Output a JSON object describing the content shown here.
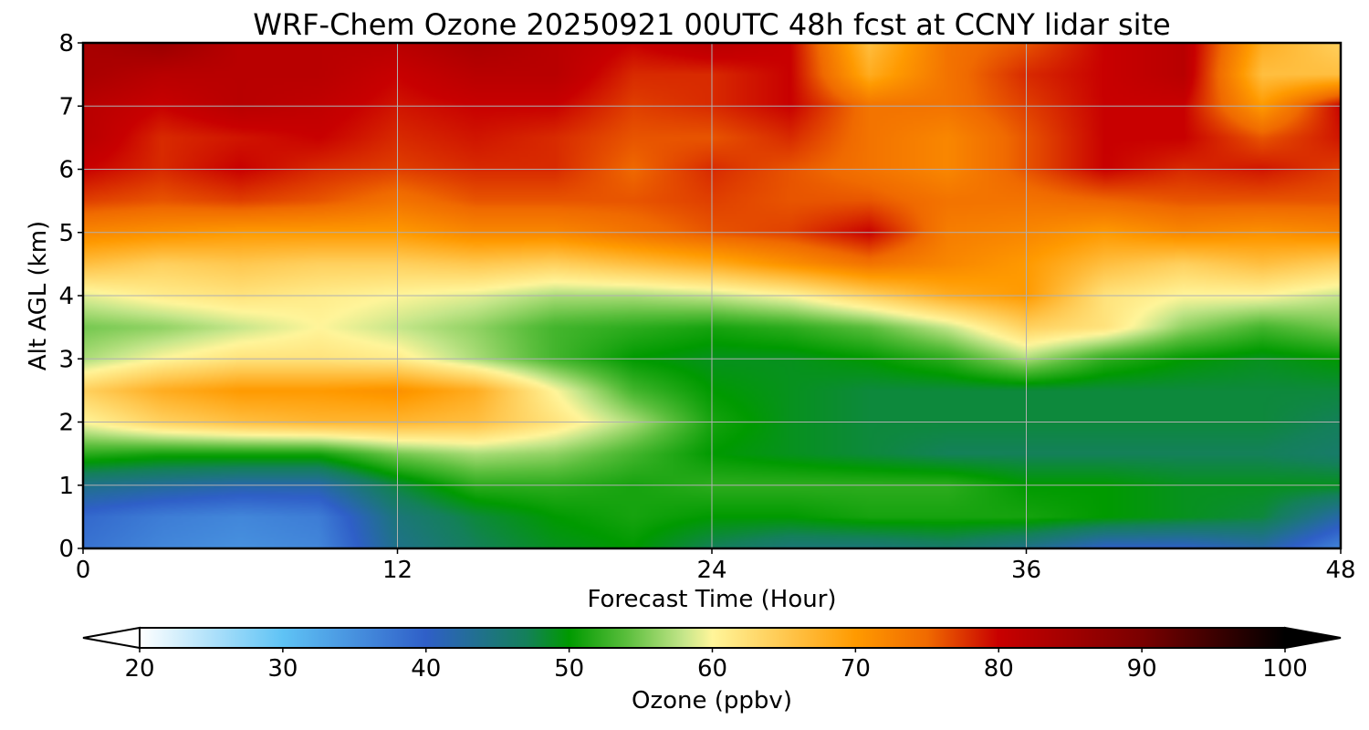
{
  "chart_data": {
    "type": "heatmap",
    "title": "WRF-Chem Ozone  20250921 00UTC 48h fcst at CCNY lidar site",
    "xlabel": "Forecast Time (Hour)",
    "ylabel": "Alt AGL (km)",
    "xlim": [
      0,
      48
    ],
    "ylim": [
      0,
      8
    ],
    "xticks": [
      0,
      12,
      24,
      36,
      48
    ],
    "yticks": [
      0,
      1,
      2,
      3,
      4,
      5,
      6,
      7,
      8
    ],
    "grid": true,
    "colorbar": {
      "label": "Ozone  (ppbv)",
      "min": 20,
      "max": 100,
      "ticks": [
        20,
        30,
        40,
        50,
        60,
        70,
        80,
        90,
        100
      ],
      "extend": "both",
      "stops": [
        {
          "v": 20,
          "color": "#ffffff"
        },
        {
          "v": 30,
          "color": "#5fc3f5"
        },
        {
          "v": 40,
          "color": "#2f5fc8"
        },
        {
          "v": 47,
          "color": "#14805a"
        },
        {
          "v": 50,
          "color": "#009a00"
        },
        {
          "v": 54,
          "color": "#5abe3c"
        },
        {
          "v": 58,
          "color": "#c5e68a"
        },
        {
          "v": 60,
          "color": "#fff59a"
        },
        {
          "v": 65,
          "color": "#ffc850"
        },
        {
          "v": 70,
          "color": "#ff9a00"
        },
        {
          "v": 75,
          "color": "#f06a00"
        },
        {
          "v": 80,
          "color": "#c80000"
        },
        {
          "v": 90,
          "color": "#7a0000"
        },
        {
          "v": 100,
          "color": "#000000"
        }
      ]
    },
    "x": [
      0,
      3,
      6,
      9,
      12,
      15,
      18,
      21,
      24,
      27,
      30,
      33,
      36,
      39,
      42,
      45,
      48
    ],
    "y": [
      0,
      0.5,
      1,
      1.5,
      2,
      2.5,
      3,
      3.5,
      4,
      4.5,
      5,
      5.5,
      6,
      6.5,
      7,
      7.5,
      8
    ],
    "z": [
      [
        38,
        36,
        35,
        36,
        44,
        47,
        49,
        50,
        47,
        45,
        45,
        46,
        44,
        40,
        40,
        42,
        36
      ],
      [
        39,
        37,
        36,
        37,
        45,
        48,
        50,
        51,
        50,
        50,
        51,
        51,
        51,
        50,
        49,
        48,
        42
      ],
      [
        44,
        43,
        42,
        42,
        48,
        52,
        52,
        51,
        52,
        52,
        52,
        52,
        50,
        50,
        49,
        49,
        49
      ],
      [
        52,
        51,
        51,
        51,
        55,
        57,
        56,
        53,
        50,
        49,
        48,
        47,
        47,
        47,
        47,
        47,
        46
      ],
      [
        60,
        64,
        66,
        67,
        67,
        66,
        62,
        57,
        51,
        49,
        48,
        48,
        48,
        48,
        48,
        48,
        47
      ],
      [
        64,
        68,
        70,
        70,
        71,
        68,
        60,
        53,
        50,
        49,
        48,
        48,
        48,
        48,
        48,
        48,
        48
      ],
      [
        57,
        60,
        62,
        62,
        61,
        57,
        53,
        50,
        49,
        49,
        50,
        52,
        57,
        52,
        50,
        49,
        50
      ],
      [
        55,
        56,
        58,
        60,
        58,
        56,
        53,
        52,
        51,
        52,
        54,
        58,
        64,
        62,
        56,
        53,
        55
      ],
      [
        59,
        61,
        62,
        61,
        60,
        59,
        57,
        57,
        58,
        60,
        64,
        68,
        70,
        62,
        60,
        60,
        58
      ],
      [
        66,
        64,
        65,
        64,
        64,
        65,
        64,
        66,
        68,
        71,
        74,
        72,
        70,
        66,
        64,
        66,
        64
      ],
      [
        72,
        71,
        70,
        70,
        70,
        72,
        72,
        74,
        76,
        77,
        80,
        73,
        72,
        70,
        72,
        71,
        72
      ],
      [
        77,
        76,
        77,
        76,
        74,
        76,
        76,
        76,
        77,
        76,
        76,
        74,
        74,
        75,
        76,
        76,
        76
      ],
      [
        80,
        78,
        80,
        78,
        77,
        78,
        78,
        75,
        78,
        76,
        74,
        72,
        76,
        80,
        78,
        79,
        77
      ],
      [
        82,
        78,
        79,
        80,
        78,
        79,
        78,
        76,
        76,
        78,
        74,
        72,
        76,
        80,
        80,
        76,
        79
      ],
      [
        82,
        80,
        82,
        81,
        79,
        80,
        80,
        77,
        78,
        80,
        74,
        74,
        77,
        80,
        80,
        70,
        80
      ],
      [
        84,
        82,
        82,
        82,
        80,
        82,
        82,
        78,
        78,
        80,
        68,
        74,
        78,
        80,
        82,
        66,
        66
      ],
      [
        84,
        86,
        82,
        82,
        82,
        84,
        82,
        80,
        82,
        80,
        66,
        74,
        76,
        80,
        82,
        68,
        64
      ]
    ]
  }
}
